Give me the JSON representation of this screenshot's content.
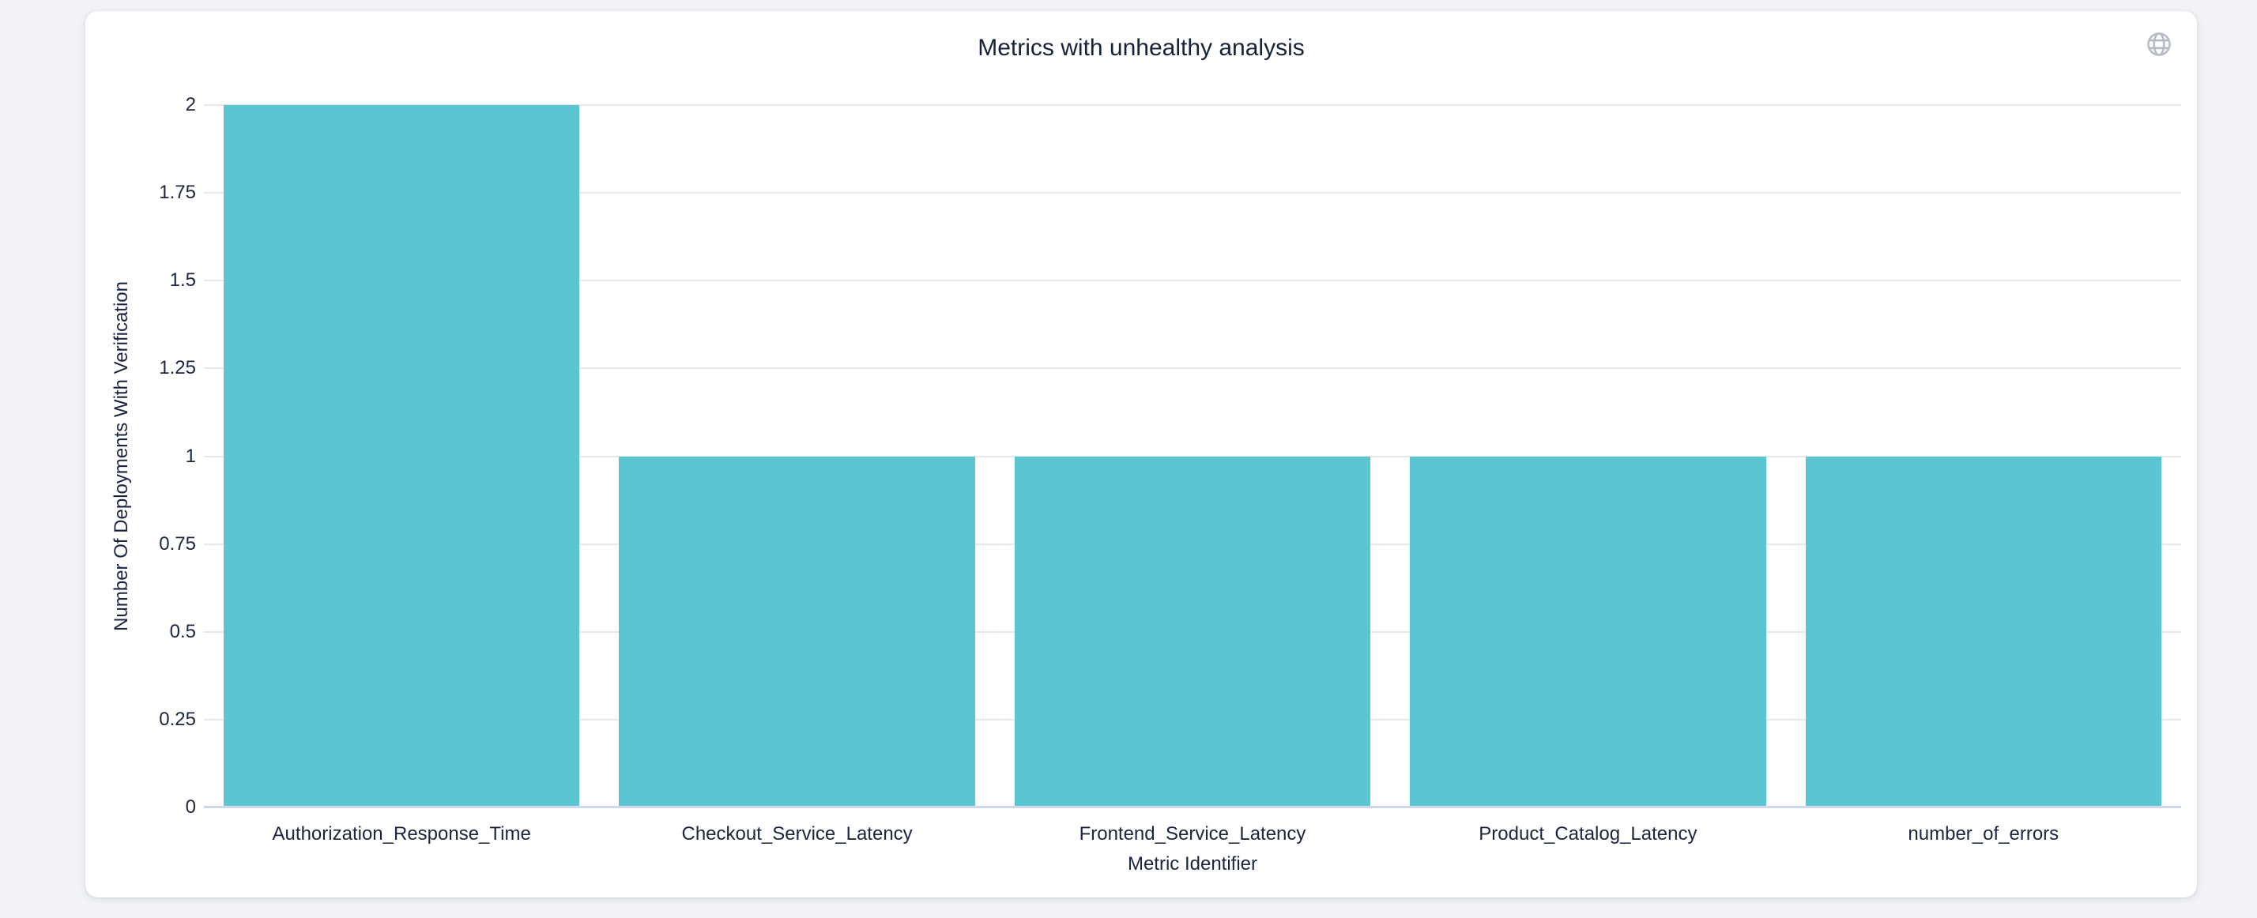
{
  "card": {
    "title": "Metrics with unhealthy analysis"
  },
  "chart_data": {
    "type": "bar",
    "title": "Metrics with unhealthy analysis",
    "categories": [
      "Authorization_Response_Time",
      "Checkout_Service_Latency",
      "Frontend_Service_Latency",
      "Product_Catalog_Latency",
      "number_of_errors"
    ],
    "values": [
      2,
      1,
      1,
      1,
      1
    ],
    "xlabel": "Metric Identifier",
    "ylabel": "Number Of Deployments With Verification",
    "ylim": [
      0,
      2
    ],
    "ytick_labels": [
      "0",
      "0.25",
      "0.5",
      "0.75",
      "1",
      "1.25",
      "1.5",
      "1.75",
      "2"
    ],
    "grid": true,
    "legend_position": "none",
    "colors": {
      "bar": "#5bc6d2",
      "gridline": "#e7e8ea",
      "axis_line": "#cfd8ea",
      "text": "#1b2540",
      "title": "#16213a",
      "icon": "#b4bbc7"
    }
  }
}
